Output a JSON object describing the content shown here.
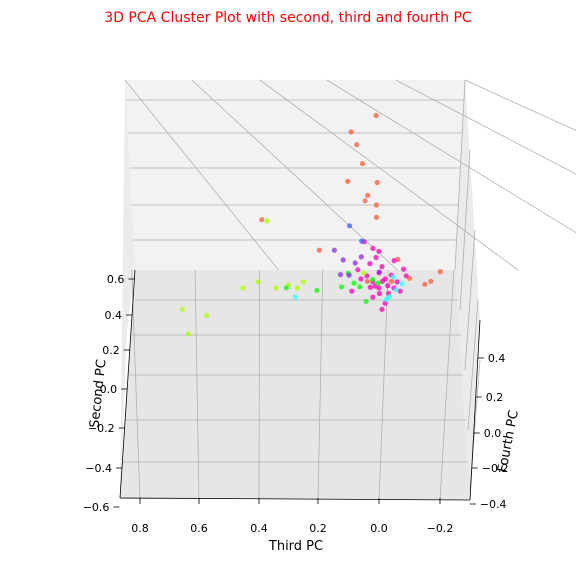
{
  "colors": {
    "title": "#ff0000",
    "pane_back": "#f2f2f2",
    "pane_side": "#ebebeb",
    "pane_floor": "#e6e6e6",
    "grid": "#b0b0b0"
  },
  "chart_data": {
    "type": "scatter",
    "projection": "3d",
    "title": "3D PCA Cluster Plot with second, third and fourth PC",
    "xlabel": "Third PC",
    "ylabel": "Fourth PC",
    "zlabel": "Second PC",
    "xticks": [
      "0.8",
      "0.6",
      "0.4",
      "0.2",
      "0.0",
      "−0.2"
    ],
    "yticks": [
      "−0.4",
      "−0.2",
      "0.0",
      "0.2",
      "0.4"
    ],
    "zticks": [
      "−0.6",
      "−0.4",
      "−0.2",
      "0.0",
      "0.2",
      "0.4",
      "0.6"
    ],
    "grid": true,
    "series": [
      {
        "color": "#ff5a36",
        "points": [
          [
            0.02,
            0.55,
            0.08
          ],
          [
            0.1,
            0.5,
            0.06
          ],
          [
            0.08,
            0.46,
            0.05
          ],
          [
            0.06,
            0.4,
            0.04
          ],
          [
            0.11,
            0.34,
            0.05
          ],
          [
            0.01,
            0.34,
            0.03
          ],
          [
            0.04,
            0.3,
            0.02
          ],
          [
            0.05,
            0.28,
            0.03
          ],
          [
            0.01,
            0.27,
            0.01
          ],
          [
            0.39,
            0.22,
            0.02
          ],
          [
            0.01,
            0.23,
            0.01
          ],
          [
            -0.06,
            0.09,
            0.02
          ],
          [
            -0.2,
            0.05,
            0.02
          ],
          [
            -0.17,
            0.02,
            0.01
          ],
          [
            -0.15,
            0.01,
            0.01
          ],
          [
            0.04,
            0.02,
            0.01
          ],
          [
            0.2,
            0.12,
            0.02
          ],
          [
            -0.1,
            0.03,
            0.01
          ],
          [
            -0.04,
            0.02,
            0.01
          ]
        ]
      },
      {
        "color": "#ff00b4",
        "points": [
          [
            0.0,
            0.0,
            0.0
          ],
          [
            -0.01,
            0.02,
            0.01
          ],
          [
            -0.03,
            0.01,
            -0.01
          ],
          [
            0.02,
            0.02,
            0.0
          ],
          [
            -0.05,
            0.0,
            0.0
          ],
          [
            0.0,
            -0.02,
            0.01
          ],
          [
            -0.02,
            0.03,
            0.0
          ],
          [
            0.01,
            0.01,
            -0.02
          ],
          [
            -0.04,
            0.04,
            0.01
          ],
          [
            0.03,
            0.0,
            0.01
          ],
          [
            -0.06,
            0.02,
            0.0
          ],
          [
            0.0,
            0.05,
            0.0
          ],
          [
            0.02,
            -0.03,
            0.0
          ],
          [
            -0.03,
            -0.02,
            0.01
          ],
          [
            -0.01,
            0.07,
            0.0
          ],
          [
            0.04,
            0.04,
            0.0
          ],
          [
            -0.07,
            -0.01,
            0.0
          ],
          [
            0.06,
            0.03,
            0.0
          ],
          [
            -0.02,
            -0.05,
            0.0
          ],
          [
            0.01,
            0.1,
            0.0
          ],
          [
            0.05,
            0.15,
            0.01
          ],
          [
            -0.08,
            0.06,
            0.01
          ],
          [
            0.09,
            -0.01,
            0.0
          ],
          [
            -0.09,
            0.04,
            0.0
          ],
          [
            0.0,
            0.12,
            0.0
          ],
          [
            0.03,
            0.08,
            0.0
          ],
          [
            -0.05,
            0.09,
            0.0
          ],
          [
            0.07,
            0.06,
            0.0
          ],
          [
            -0.01,
            -0.07,
            0.0
          ],
          [
            0.02,
            0.13,
            0.0
          ]
        ]
      },
      {
        "color": "#aaff00",
        "points": [
          [
            0.65,
            -0.07,
            0.0
          ],
          [
            0.63,
            -0.15,
            0.0
          ],
          [
            0.57,
            -0.09,
            0.0
          ],
          [
            0.45,
            0.0,
            0.0
          ],
          [
            0.4,
            0.02,
            0.0
          ],
          [
            0.34,
            0.0,
            0.0
          ],
          [
            0.3,
            0.01,
            0.0
          ],
          [
            0.27,
            0.0,
            0.0
          ],
          [
            0.25,
            0.02,
            0.0
          ],
          [
            0.37,
            0.22,
            0.0
          ],
          [
            0.05,
            0.05,
            0.0
          ]
        ]
      },
      {
        "color": "#00ff00",
        "points": [
          [
            0.3,
            0.01,
            -0.05
          ],
          [
            0.2,
            0.0,
            -0.04
          ],
          [
            0.12,
            0.01,
            -0.03
          ],
          [
            0.08,
            0.02,
            -0.02
          ],
          [
            0.04,
            -0.04,
            -0.02
          ],
          [
            0.02,
            0.03,
            -0.01
          ],
          [
            0.0,
            0.02,
            -0.02
          ],
          [
            0.1,
            0.05,
            -0.01
          ],
          [
            0.06,
            0.01,
            -0.03
          ]
        ]
      },
      {
        "color": "#2affff",
        "points": [
          [
            0.27,
            -0.02,
            -0.05
          ],
          [
            -0.03,
            -0.03,
            -0.04
          ],
          [
            -0.06,
            0.0,
            -0.03
          ],
          [
            -0.08,
            0.02,
            -0.03
          ],
          [
            -0.05,
            0.04,
            -0.02
          ],
          [
            -0.04,
            -0.02,
            -0.04
          ]
        ]
      },
      {
        "color": "#8a2be2",
        "points": [
          [
            0.13,
            0.04,
            0.02
          ],
          [
            0.12,
            0.09,
            0.01
          ],
          [
            0.15,
            0.12,
            0.02
          ],
          [
            0.1,
            0.04,
            0.01
          ],
          [
            0.0,
            0.05,
            0.01
          ],
          [
            0.06,
            0.1,
            0.01
          ],
          [
            0.08,
            0.08,
            0.01
          ]
        ]
      },
      {
        "color": "#3264ff",
        "points": [
          [
            0.1,
            0.2,
            0.02
          ],
          [
            0.06,
            0.15,
            0.02
          ]
        ]
      }
    ]
  }
}
